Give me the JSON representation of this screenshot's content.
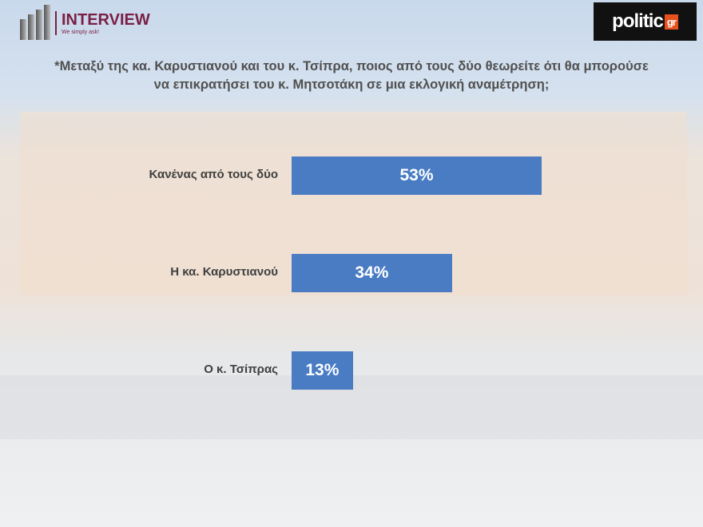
{
  "header": {
    "brand": "INTERVIEW",
    "tagline": "We simply ask!",
    "partner_logo": "politic",
    "partner_logo_suffix": "gr"
  },
  "chart_data": {
    "type": "bar",
    "orientation": "horizontal",
    "title": "*Μεταξύ της κα. Καρυστιανού και του κ. Τσίπρα, ποιος από τους δύο θεωρείτε ότι θα μπορούσε να επικρατήσει του κ. Μητσοτάκη σε μια εκλογική αναμέτρηση;",
    "categories": [
      "Κανένας από τους δύο",
      "Η κα. Καρυστιανού",
      "Ο κ. Τσίπρας"
    ],
    "values": [
      53,
      34,
      13
    ],
    "data_labels": [
      "53%",
      "34%",
      "13%"
    ],
    "unit": "%",
    "bar_color": "#4a7cc4",
    "grid": false
  }
}
